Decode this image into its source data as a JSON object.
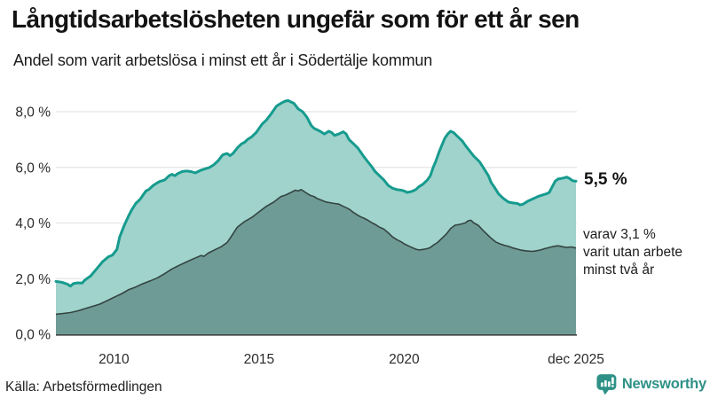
{
  "chart_data": {
    "type": "area",
    "title": "Långtidsarbetslösheten ungefär som för ett år sen",
    "subtitle": "Andel som varit arbetslösa i minst ett år i Södertälje kommun",
    "xlabel": "",
    "ylabel": "",
    "x_range": [
      2008.0,
      2025.95
    ],
    "ylim": [
      0,
      8.6
    ],
    "grid": "horizontal",
    "legend_position": "none",
    "y_ticks": [
      {
        "v": 0,
        "label": "0,0 %"
      },
      {
        "v": 2,
        "label": "2,0 %"
      },
      {
        "v": 4,
        "label": "4,0 %"
      },
      {
        "v": 6,
        "label": "6,0 %"
      },
      {
        "v": 8,
        "label": "8,0 %"
      }
    ],
    "x_ticks": [
      {
        "t": 2010,
        "label": "2010"
      },
      {
        "t": 2015,
        "label": "2015"
      },
      {
        "t": 2020,
        "label": "2020"
      },
      {
        "t": 2025.92,
        "label": "dec 2025"
      }
    ],
    "colors": {
      "line_primary": "#169b8e",
      "fill_primary": "#9fd3cc",
      "line_secondary": "#344441",
      "fill_secondary": "#6f9b96",
      "grid": "#e4e4e9",
      "axis_baseline": "#424242",
      "brand_teal": "#2e9187"
    },
    "series": [
      {
        "name": "Andel arbetslösa minst ett år",
        "final_label": "5,5 %",
        "final_value": 5.5,
        "points": [
          [
            2008.0,
            1.9
          ],
          [
            2008.2,
            1.87
          ],
          [
            2008.4,
            1.8
          ],
          [
            2008.5,
            1.73
          ],
          [
            2008.6,
            1.82
          ],
          [
            2008.75,
            1.85
          ],
          [
            2008.9,
            1.84
          ],
          [
            2009.0,
            1.95
          ],
          [
            2009.2,
            2.1
          ],
          [
            2009.4,
            2.35
          ],
          [
            2009.6,
            2.6
          ],
          [
            2009.8,
            2.78
          ],
          [
            2009.95,
            2.85
          ],
          [
            2010.1,
            3.05
          ],
          [
            2010.2,
            3.5
          ],
          [
            2010.35,
            3.9
          ],
          [
            2010.5,
            4.25
          ],
          [
            2010.6,
            4.45
          ],
          [
            2010.75,
            4.7
          ],
          [
            2010.9,
            4.85
          ],
          [
            2011.0,
            5.0
          ],
          [
            2011.1,
            5.15
          ],
          [
            2011.2,
            5.2
          ],
          [
            2011.35,
            5.35
          ],
          [
            2011.5,
            5.45
          ],
          [
            2011.6,
            5.5
          ],
          [
            2011.75,
            5.55
          ],
          [
            2011.9,
            5.7
          ],
          [
            2012.0,
            5.75
          ],
          [
            2012.1,
            5.7
          ],
          [
            2012.2,
            5.78
          ],
          [
            2012.35,
            5.85
          ],
          [
            2012.5,
            5.87
          ],
          [
            2012.65,
            5.85
          ],
          [
            2012.8,
            5.8
          ],
          [
            2012.9,
            5.85
          ],
          [
            2013.0,
            5.9
          ],
          [
            2013.15,
            5.95
          ],
          [
            2013.3,
            6.0
          ],
          [
            2013.45,
            6.1
          ],
          [
            2013.6,
            6.25
          ],
          [
            2013.75,
            6.45
          ],
          [
            2013.9,
            6.5
          ],
          [
            2014.0,
            6.42
          ],
          [
            2014.1,
            6.5
          ],
          [
            2014.25,
            6.7
          ],
          [
            2014.4,
            6.85
          ],
          [
            2014.5,
            6.9
          ],
          [
            2014.6,
            7.0
          ],
          [
            2014.75,
            7.1
          ],
          [
            2014.9,
            7.25
          ],
          [
            2015.0,
            7.4
          ],
          [
            2015.1,
            7.55
          ],
          [
            2015.25,
            7.7
          ],
          [
            2015.4,
            7.9
          ],
          [
            2015.5,
            8.05
          ],
          [
            2015.6,
            8.2
          ],
          [
            2015.75,
            8.3
          ],
          [
            2015.9,
            8.38
          ],
          [
            2016.0,
            8.4
          ],
          [
            2016.1,
            8.35
          ],
          [
            2016.2,
            8.3
          ],
          [
            2016.35,
            8.1
          ],
          [
            2016.5,
            8.0
          ],
          [
            2016.65,
            7.8
          ],
          [
            2016.8,
            7.5
          ],
          [
            2016.9,
            7.4
          ],
          [
            2017.0,
            7.35
          ],
          [
            2017.1,
            7.3
          ],
          [
            2017.25,
            7.2
          ],
          [
            2017.4,
            7.3
          ],
          [
            2017.5,
            7.25
          ],
          [
            2017.6,
            7.15
          ],
          [
            2017.75,
            7.2
          ],
          [
            2017.9,
            7.28
          ],
          [
            2018.0,
            7.2
          ],
          [
            2018.1,
            7.0
          ],
          [
            2018.25,
            6.85
          ],
          [
            2018.4,
            6.7
          ],
          [
            2018.5,
            6.55
          ],
          [
            2018.6,
            6.4
          ],
          [
            2018.75,
            6.2
          ],
          [
            2018.9,
            6.0
          ],
          [
            2019.0,
            5.85
          ],
          [
            2019.15,
            5.7
          ],
          [
            2019.3,
            5.55
          ],
          [
            2019.45,
            5.35
          ],
          [
            2019.6,
            5.25
          ],
          [
            2019.75,
            5.2
          ],
          [
            2019.9,
            5.18
          ],
          [
            2020.0,
            5.15
          ],
          [
            2020.1,
            5.1
          ],
          [
            2020.2,
            5.12
          ],
          [
            2020.3,
            5.15
          ],
          [
            2020.4,
            5.2
          ],
          [
            2020.5,
            5.3
          ],
          [
            2020.65,
            5.4
          ],
          [
            2020.8,
            5.55
          ],
          [
            2020.9,
            5.7
          ],
          [
            2021.0,
            6.0
          ],
          [
            2021.1,
            6.25
          ],
          [
            2021.2,
            6.55
          ],
          [
            2021.3,
            6.8
          ],
          [
            2021.4,
            7.05
          ],
          [
            2021.5,
            7.2
          ],
          [
            2021.6,
            7.3
          ],
          [
            2021.7,
            7.25
          ],
          [
            2021.8,
            7.15
          ],
          [
            2021.9,
            7.05
          ],
          [
            2022.0,
            6.95
          ],
          [
            2022.1,
            6.8
          ],
          [
            2022.25,
            6.6
          ],
          [
            2022.4,
            6.4
          ],
          [
            2022.5,
            6.3
          ],
          [
            2022.6,
            6.2
          ],
          [
            2022.75,
            5.95
          ],
          [
            2022.9,
            5.7
          ],
          [
            2023.0,
            5.45
          ],
          [
            2023.1,
            5.3
          ],
          [
            2023.25,
            5.05
          ],
          [
            2023.4,
            4.9
          ],
          [
            2023.5,
            4.82
          ],
          [
            2023.6,
            4.75
          ],
          [
            2023.75,
            4.72
          ],
          [
            2023.9,
            4.7
          ],
          [
            2024.0,
            4.65
          ],
          [
            2024.1,
            4.68
          ],
          [
            2024.25,
            4.78
          ],
          [
            2024.4,
            4.85
          ],
          [
            2024.5,
            4.9
          ],
          [
            2024.6,
            4.95
          ],
          [
            2024.75,
            5.0
          ],
          [
            2024.9,
            5.05
          ],
          [
            2025.0,
            5.1
          ],
          [
            2025.1,
            5.3
          ],
          [
            2025.2,
            5.5
          ],
          [
            2025.3,
            5.58
          ],
          [
            2025.4,
            5.6
          ],
          [
            2025.5,
            5.62
          ],
          [
            2025.6,
            5.65
          ],
          [
            2025.7,
            5.6
          ],
          [
            2025.8,
            5.52
          ],
          [
            2025.92,
            5.5
          ]
        ]
      },
      {
        "name": "Andel arbetslösa minst två år",
        "annotation": "varav 3,1 %\nvarit utan arbete\nminst två år",
        "final_value": 3.1,
        "points": [
          [
            2008.0,
            0.72
          ],
          [
            2008.25,
            0.75
          ],
          [
            2008.5,
            0.78
          ],
          [
            2008.75,
            0.84
          ],
          [
            2009.0,
            0.92
          ],
          [
            2009.25,
            1.0
          ],
          [
            2009.5,
            1.08
          ],
          [
            2009.75,
            1.2
          ],
          [
            2010.0,
            1.33
          ],
          [
            2010.25,
            1.45
          ],
          [
            2010.5,
            1.6
          ],
          [
            2010.75,
            1.7
          ],
          [
            2011.0,
            1.82
          ],
          [
            2011.25,
            1.92
          ],
          [
            2011.5,
            2.03
          ],
          [
            2011.75,
            2.18
          ],
          [
            2012.0,
            2.35
          ],
          [
            2012.25,
            2.48
          ],
          [
            2012.5,
            2.6
          ],
          [
            2012.75,
            2.72
          ],
          [
            2013.0,
            2.83
          ],
          [
            2013.1,
            2.8
          ],
          [
            2013.25,
            2.92
          ],
          [
            2013.5,
            3.05
          ],
          [
            2013.7,
            3.15
          ],
          [
            2013.9,
            3.3
          ],
          [
            2014.0,
            3.45
          ],
          [
            2014.25,
            3.85
          ],
          [
            2014.5,
            4.05
          ],
          [
            2014.75,
            4.2
          ],
          [
            2015.0,
            4.4
          ],
          [
            2015.25,
            4.6
          ],
          [
            2015.5,
            4.75
          ],
          [
            2015.75,
            4.95
          ],
          [
            2015.9,
            5.0
          ],
          [
            2016.0,
            5.05
          ],
          [
            2016.1,
            5.1
          ],
          [
            2016.25,
            5.18
          ],
          [
            2016.35,
            5.15
          ],
          [
            2016.45,
            5.2
          ],
          [
            2016.6,
            5.1
          ],
          [
            2016.75,
            5.0
          ],
          [
            2016.9,
            4.95
          ],
          [
            2017.0,
            4.88
          ],
          [
            2017.15,
            4.82
          ],
          [
            2017.3,
            4.76
          ],
          [
            2017.45,
            4.73
          ],
          [
            2017.6,
            4.7
          ],
          [
            2017.75,
            4.68
          ],
          [
            2017.9,
            4.6
          ],
          [
            2018.0,
            4.55
          ],
          [
            2018.1,
            4.5
          ],
          [
            2018.25,
            4.38
          ],
          [
            2018.4,
            4.28
          ],
          [
            2018.5,
            4.22
          ],
          [
            2018.6,
            4.18
          ],
          [
            2018.75,
            4.1
          ],
          [
            2018.9,
            4.0
          ],
          [
            2019.0,
            3.95
          ],
          [
            2019.15,
            3.85
          ],
          [
            2019.3,
            3.78
          ],
          [
            2019.45,
            3.65
          ],
          [
            2019.6,
            3.5
          ],
          [
            2019.75,
            3.4
          ],
          [
            2019.9,
            3.32
          ],
          [
            2020.0,
            3.25
          ],
          [
            2020.2,
            3.15
          ],
          [
            2020.4,
            3.06
          ],
          [
            2020.5,
            3.03
          ],
          [
            2020.65,
            3.05
          ],
          [
            2020.8,
            3.08
          ],
          [
            2020.9,
            3.12
          ],
          [
            2021.0,
            3.2
          ],
          [
            2021.15,
            3.3
          ],
          [
            2021.3,
            3.45
          ],
          [
            2021.45,
            3.6
          ],
          [
            2021.6,
            3.8
          ],
          [
            2021.75,
            3.92
          ],
          [
            2021.9,
            3.95
          ],
          [
            2022.0,
            3.97
          ],
          [
            2022.1,
            4.0
          ],
          [
            2022.2,
            4.08
          ],
          [
            2022.3,
            4.1
          ],
          [
            2022.4,
            4.0
          ],
          [
            2022.55,
            3.92
          ],
          [
            2022.7,
            3.75
          ],
          [
            2022.85,
            3.6
          ],
          [
            2023.0,
            3.45
          ],
          [
            2023.15,
            3.32
          ],
          [
            2023.3,
            3.25
          ],
          [
            2023.45,
            3.2
          ],
          [
            2023.6,
            3.16
          ],
          [
            2023.75,
            3.1
          ],
          [
            2023.9,
            3.06
          ],
          [
            2024.0,
            3.03
          ],
          [
            2024.2,
            3.0
          ],
          [
            2024.4,
            2.98
          ],
          [
            2024.55,
            3.0
          ],
          [
            2024.7,
            3.03
          ],
          [
            2024.85,
            3.08
          ],
          [
            2025.0,
            3.12
          ],
          [
            2025.15,
            3.16
          ],
          [
            2025.3,
            3.18
          ],
          [
            2025.45,
            3.15
          ],
          [
            2025.6,
            3.12
          ],
          [
            2025.75,
            3.14
          ],
          [
            2025.92,
            3.1
          ]
        ]
      }
    ]
  },
  "source": {
    "label": "Källa: Arbetsförmedlingen"
  },
  "branding": {
    "name": "Newsworthy"
  }
}
